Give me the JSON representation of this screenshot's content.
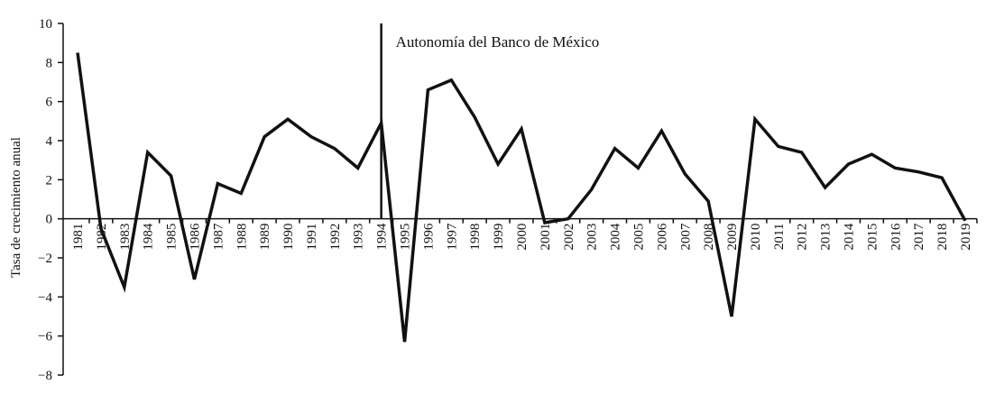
{
  "chart_data": {
    "type": "line",
    "y_label": "Tasa de crecimiento anual",
    "annotation": {
      "text": "Autonomía del Banco de México",
      "category": "1994"
    },
    "categories": [
      "1981",
      "1982",
      "1983",
      "1984",
      "1985",
      "1986",
      "1987",
      "1988",
      "1989",
      "1990",
      "1991",
      "1992",
      "1993",
      "1994",
      "1995",
      "1996",
      "1997",
      "1998",
      "1999",
      "2000",
      "2001",
      "2002",
      "2003",
      "2004",
      "2005",
      "2006",
      "2007",
      "2008",
      "2009",
      "2010",
      "2011",
      "2012",
      "2013",
      "2014",
      "2015",
      "2016",
      "2017",
      "2018",
      "2019"
    ],
    "series": [
      {
        "color": "#111111",
        "values": [
          8.5,
          -0.5,
          -3.5,
          3.4,
          2.2,
          -3.1,
          1.8,
          1.3,
          4.2,
          5.1,
          4.2,
          3.6,
          2.6,
          4.9,
          -6.3,
          6.6,
          7.1,
          5.2,
          2.8,
          4.6,
          -0.2,
          0.0,
          1.5,
          3.6,
          2.6,
          4.5,
          2.3,
          0.9,
          -5.0,
          5.1,
          3.7,
          3.4,
          1.6,
          2.8,
          3.3,
          2.6,
          2.4,
          2.1,
          -0.1
        ]
      }
    ],
    "ylim": [
      -8,
      10
    ],
    "yticks": [
      {
        "value": -8,
        "label": "−8"
      },
      {
        "value": -6,
        "label": "−6"
      },
      {
        "value": -4,
        "label": "−4"
      },
      {
        "value": -2,
        "label": "−2"
      },
      0,
      2,
      4,
      6,
      8,
      10
    ]
  }
}
